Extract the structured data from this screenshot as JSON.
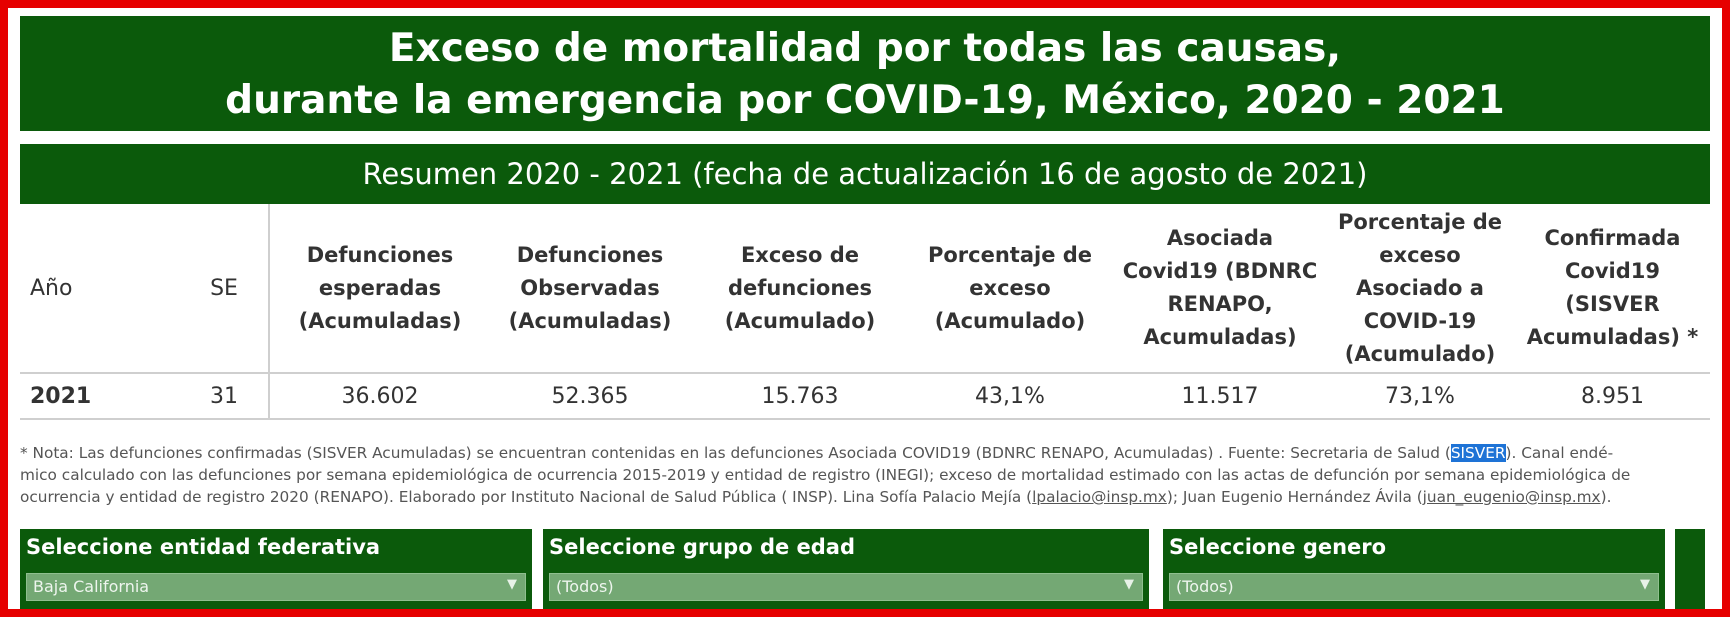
{
  "title": {
    "line1": "Exceso de mortalidad por todas las causas,",
    "line2": "durante la emergencia por COVID-19, México, 2020 - 2021"
  },
  "subtitle": "Resumen 2020 - 2021  (fecha de actualización 16 de agosto de 2021)",
  "table": {
    "headers": {
      "anio": "Año",
      "se": "SE",
      "esperadas": [
        "Defunciones",
        "esperadas",
        "(Acumuladas)"
      ],
      "observadas": [
        "Defunciones",
        "Observadas",
        "(Acumuladas)"
      ],
      "exceso": [
        "Exceso de",
        "defunciones",
        "(Acumulado)"
      ],
      "porcentaje": [
        "Porcentaje de",
        "exceso",
        "(Acumulado)"
      ],
      "asociada": [
        "Asociada",
        "Covid19 (BDNRC",
        "RENAPO,",
        "Acumuladas)"
      ],
      "porcentaje_asociado": [
        "Porcentaje de",
        "exceso",
        "Asociado a",
        "COVID-19",
        "(Acumulado)"
      ],
      "confirmada": [
        "Confirmada",
        "Covid19",
        "(SISVER",
        "Acumuladas) *"
      ]
    },
    "row": {
      "anio": "2021",
      "se": "31",
      "esperadas": "36.602",
      "observadas": "52.365",
      "exceso": "15.763",
      "porcentaje": "43,1%",
      "asociada": "11.517",
      "porcentaje_asociado": "73,1%",
      "confirmada": "8.951"
    }
  },
  "note": {
    "line1_a": "* Nota: Las defunciones confirmadas (SISVER Acumuladas) se encuentran contenidas en las defunciones Asociada COVID19 (BDNRC RENAPO, Acumuladas) . Fuente: Secretaria de Salud (",
    "line1_hl": "SISVER",
    "line1_b": "). Canal endé-",
    "line2": "mico calculado con las defunciones por semana epidemiológica de ocurrencia 2015-2019 y entidad de registro (INEGI); exceso de mortalidad estimado con las actas de defunción por semana epidemiológica de",
    "line3_a": "ocurrencia y entidad de registro 2020 (RENAPO). Elaborado por Instituto Nacional de Salud Pública ( INSP). Lina Sofía Palacio Mejía (",
    "email1": "lpalacio@insp.mx",
    "line3_b": "); Juan Eugenio Hernández Ávila (",
    "email2": "juan_eugenio@insp.mx",
    "line3_c": ")."
  },
  "filters": {
    "entidad": {
      "label": "Seleccione entidad federativa",
      "value": "Baja California"
    },
    "edad": {
      "label": "Seleccione grupo de edad",
      "value": "(Todos)"
    },
    "genero": {
      "label": "Seleccione genero",
      "value": "(Todos)"
    }
  },
  "colors": {
    "frame": "#e60000",
    "banner": "#0b5a0b",
    "dropdown": "#74a874",
    "highlight": "#1e73d6"
  }
}
